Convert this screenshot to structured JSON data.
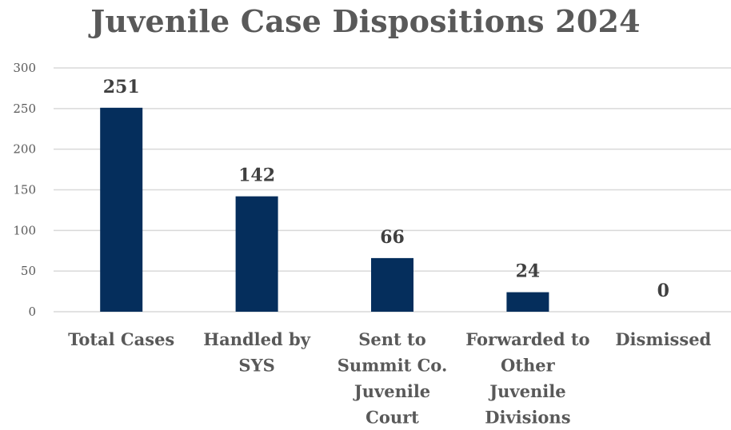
{
  "chart_data": {
    "type": "bar",
    "title": "Juvenile Case Dispositions 2024",
    "categories": [
      "Total Cases",
      "Handled by SYS",
      "Sent to Summit Co. Juvenile Court",
      "Forwarded to Other Juvenile Divisions",
      "Dismissed"
    ],
    "category_lines": [
      [
        "Total Cases"
      ],
      [
        "Handled by",
        "SYS"
      ],
      [
        "Sent to",
        "Summit Co.",
        "Juvenile",
        "Court"
      ],
      [
        "Forwarded to",
        "Other",
        "Juvenile",
        "Divisions"
      ],
      [
        "Dismissed"
      ]
    ],
    "values": [
      251,
      142,
      66,
      24,
      0
    ],
    "data_labels": [
      "251",
      "142",
      "66",
      "24",
      "0"
    ],
    "yticks": [
      "0",
      "50",
      "100",
      "150",
      "200",
      "250",
      "300"
    ],
    "ylim": [
      0,
      300
    ],
    "grid": true,
    "bar_color": "#052e5c"
  }
}
